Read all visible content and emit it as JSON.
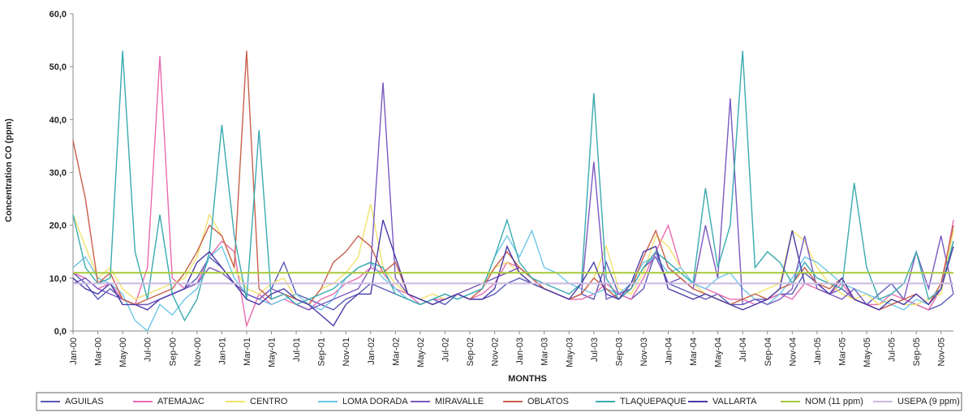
{
  "chart_data": {
    "type": "line",
    "y_label": "Concentration  CO (ppm)",
    "x_label": "MONTHS",
    "categories": [
      "Jan-00",
      null,
      "Mar-00",
      null,
      "May-00",
      null,
      "Jul-00",
      null,
      "Sep-00",
      null,
      "Nov-00",
      null,
      "Jan-01",
      null,
      "Mar-01",
      null,
      "May-01",
      null,
      "Jul-01",
      null,
      "Sep-01",
      null,
      "Nov-01",
      null,
      "Jan-02",
      null,
      "Mar-02",
      null,
      "May-02",
      null,
      "Jul-02",
      null,
      "Sep-02",
      null,
      "Nov-02",
      null,
      "Jan-03",
      null,
      "Mar-03",
      null,
      "May-03",
      null,
      "Jul-03",
      null,
      "Sep-03",
      null,
      "Nov-03",
      null,
      "Jan-04",
      null,
      "Mar-04",
      null,
      "May-04",
      null,
      "Jul-04",
      null,
      "Sep-04",
      null,
      "Nov-04",
      null,
      "Jan-05",
      null,
      "Mar-05",
      null,
      "May-05",
      null,
      "Jul-05",
      null,
      "Sep-05",
      null,
      "Nov-05",
      null
    ],
    "ylim": [
      0,
      60
    ],
    "yticks": [
      {
        "value": 0,
        "label": "0,0"
      },
      {
        "value": 10,
        "label": "10,0"
      },
      {
        "value": 20,
        "label": "20,0"
      },
      {
        "value": 30,
        "label": "30,0"
      },
      {
        "value": 40,
        "label": "40,0"
      },
      {
        "value": 50,
        "label": "50,0"
      },
      {
        "value": 60,
        "label": "60,0"
      }
    ],
    "series": [
      {
        "name": "AGUILAS",
        "color": "#5a5ab8",
        "values": [
          11,
          9,
          6,
          8,
          6,
          5,
          5,
          6,
          7,
          8,
          10,
          14,
          12,
          9,
          7,
          6,
          8,
          13,
          7,
          6,
          5,
          4,
          6,
          7,
          9,
          8,
          7,
          6,
          5,
          6,
          5,
          7,
          6,
          6,
          7,
          9,
          10,
          9,
          8,
          7,
          6,
          7,
          6,
          13,
          7,
          6,
          8,
          15,
          9,
          8,
          7,
          6,
          7,
          5,
          5,
          6,
          6,
          7,
          7,
          11,
          9,
          7,
          8,
          6,
          5,
          7,
          9,
          6,
          5,
          4,
          5,
          7
        ]
      },
      {
        "name": "ATEMAJAC",
        "color": "#e86bb0",
        "values": [
          11,
          10,
          8,
          9,
          6,
          5,
          12,
          52,
          10,
          8,
          9,
          14,
          17,
          15,
          1,
          7,
          5,
          6,
          5,
          4,
          6,
          7,
          9,
          10,
          12,
          11,
          8,
          7,
          5,
          6,
          6,
          7,
          6,
          7,
          9,
          13,
          12,
          10,
          8,
          7,
          6,
          6,
          7,
          9,
          7,
          6,
          10,
          15,
          20,
          12,
          9,
          8,
          7,
          6,
          6,
          5,
          6,
          7,
          6,
          9,
          8,
          7,
          9,
          6,
          5,
          5,
          7,
          6,
          5,
          4,
          8,
          21
        ]
      },
      {
        "name": "CENTRO",
        "color": "#f2e26c",
        "values": [
          22,
          16,
          10,
          12,
          8,
          6,
          7,
          8,
          9,
          10,
          14,
          22,
          18,
          12,
          8,
          7,
          9,
          10,
          6,
          5,
          8,
          9,
          11,
          14,
          24,
          12,
          9,
          7,
          6,
          7,
          6,
          7,
          8,
          9,
          12,
          13,
          11,
          9,
          8,
          7,
          6,
          7,
          10,
          16,
          8,
          7,
          11,
          18,
          16,
          12,
          9,
          7,
          6,
          5,
          6,
          7,
          8,
          9,
          19,
          17,
          12,
          9,
          7,
          6,
          7,
          5,
          6,
          5,
          5,
          6,
          7,
          19
        ]
      },
      {
        "name": "LOMA DORADA",
        "color": "#6ec6e8",
        "values": [
          12,
          14,
          10,
          9,
          7,
          2,
          0,
          5,
          3,
          6,
          8,
          14,
          16,
          10,
          7,
          6,
          5,
          6,
          7,
          5,
          4,
          6,
          10,
          12,
          13,
          10,
          8,
          6,
          5,
          6,
          7,
          6,
          7,
          8,
          14,
          18,
          14,
          19,
          12,
          11,
          9,
          8,
          7,
          8,
          7,
          9,
          13,
          14,
          11,
          12,
          9,
          8,
          10,
          11,
          8,
          6,
          5,
          7,
          10,
          14,
          13,
          11,
          9,
          8,
          7,
          6,
          5,
          4,
          6,
          5,
          8,
          17
        ]
      },
      {
        "name": "MIRAVALLE",
        "color": "#7a5ac0",
        "values": [
          9,
          10,
          8,
          7,
          6,
          5,
          5,
          6,
          7,
          8,
          9,
          12,
          11,
          9,
          7,
          6,
          8,
          7,
          5,
          4,
          5,
          6,
          7,
          8,
          12,
          47,
          10,
          7,
          6,
          5,
          6,
          7,
          8,
          9,
          10,
          11,
          12,
          10,
          8,
          7,
          6,
          7,
          32,
          6,
          7,
          8,
          12,
          14,
          9,
          10,
          8,
          20,
          10,
          44,
          5,
          6,
          5,
          6,
          8,
          18,
          8,
          7,
          6,
          8,
          5,
          4,
          5,
          6,
          15,
          8,
          18,
          7
        ]
      },
      {
        "name": "OBLATOS",
        "color": "#c8604a",
        "values": [
          36,
          25,
          9,
          11,
          6,
          5,
          6,
          7,
          8,
          11,
          15,
          20,
          18,
          12,
          53,
          8,
          6,
          7,
          6,
          5,
          8,
          13,
          15,
          18,
          16,
          11,
          13,
          7,
          6,
          5,
          6,
          7,
          6,
          8,
          12,
          15,
          12,
          10,
          8,
          7,
          6,
          7,
          10,
          8,
          6,
          8,
          14,
          19,
          12,
          10,
          8,
          7,
          6,
          5,
          6,
          7,
          6,
          8,
          9,
          12,
          9,
          8,
          10,
          6,
          5,
          4,
          5,
          6,
          7,
          5,
          9,
          20
        ]
      },
      {
        "name": "TLAQUEPAQUE",
        "color": "#3aaab0",
        "values": [
          22,
          12,
          9,
          10,
          53,
          15,
          6,
          22,
          7,
          2,
          6,
          15,
          39,
          18,
          6,
          38,
          6,
          7,
          5,
          6,
          7,
          8,
          10,
          12,
          13,
          12,
          7,
          6,
          5,
          6,
          7,
          6,
          7,
          8,
          14,
          21,
          13,
          10,
          9,
          8,
          7,
          9,
          45,
          10,
          6,
          8,
          12,
          15,
          13,
          11,
          9,
          27,
          12,
          20,
          53,
          12,
          15,
          13,
          9,
          13,
          10,
          9,
          8,
          28,
          12,
          6,
          7,
          9,
          15,
          6,
          8,
          17
        ]
      },
      {
        "name": "VALLARTA",
        "color": "#4a3aa8",
        "values": [
          10,
          8,
          7,
          9,
          5,
          5,
          4,
          6,
          7,
          8,
          13,
          15,
          12,
          9,
          6,
          5,
          7,
          8,
          6,
          5,
          3,
          1,
          5,
          7,
          7,
          21,
          14,
          7,
          6,
          5,
          6,
          7,
          6,
          6,
          8,
          16,
          11,
          9,
          8,
          7,
          6,
          9,
          13,
          7,
          6,
          9,
          15,
          16,
          8,
          7,
          6,
          7,
          6,
          5,
          4,
          5,
          6,
          8,
          19,
          9,
          9,
          7,
          10,
          6,
          5,
          4,
          6,
          5,
          7,
          5,
          8,
          16
        ]
      },
      {
        "name": "NOM (11 ppm)",
        "color": "#a6c83a",
        "values": [
          11,
          11,
          11,
          11,
          11,
          11,
          11,
          11,
          11,
          11,
          11,
          11,
          11,
          11,
          11,
          11,
          11,
          11,
          11,
          11,
          11,
          11,
          11,
          11,
          11,
          11,
          11,
          11,
          11,
          11,
          11,
          11,
          11,
          11,
          11,
          11,
          11,
          11,
          11,
          11,
          11,
          11,
          11,
          11,
          11,
          11,
          11,
          11,
          11,
          11,
          11,
          11,
          11,
          11,
          11,
          11,
          11,
          11,
          11,
          11,
          11,
          11,
          11,
          11,
          11,
          11,
          11,
          11,
          11,
          11,
          11,
          11
        ]
      },
      {
        "name": "USEPA (9 ppm)",
        "color": "#c9b9e0",
        "values": [
          9,
          9,
          9,
          9,
          9,
          9,
          9,
          9,
          9,
          9,
          9,
          9,
          9,
          9,
          9,
          9,
          9,
          9,
          9,
          9,
          9,
          9,
          9,
          9,
          9,
          9,
          9,
          9,
          9,
          9,
          9,
          9,
          9,
          9,
          9,
          9,
          9,
          9,
          9,
          9,
          9,
          9,
          9,
          9,
          9,
          9,
          9,
          9,
          9,
          9,
          9,
          9,
          9,
          9,
          9,
          9,
          9,
          9,
          9,
          9,
          9,
          9,
          9,
          9,
          9,
          9,
          9,
          9,
          9,
          9,
          9,
          9
        ]
      }
    ]
  }
}
